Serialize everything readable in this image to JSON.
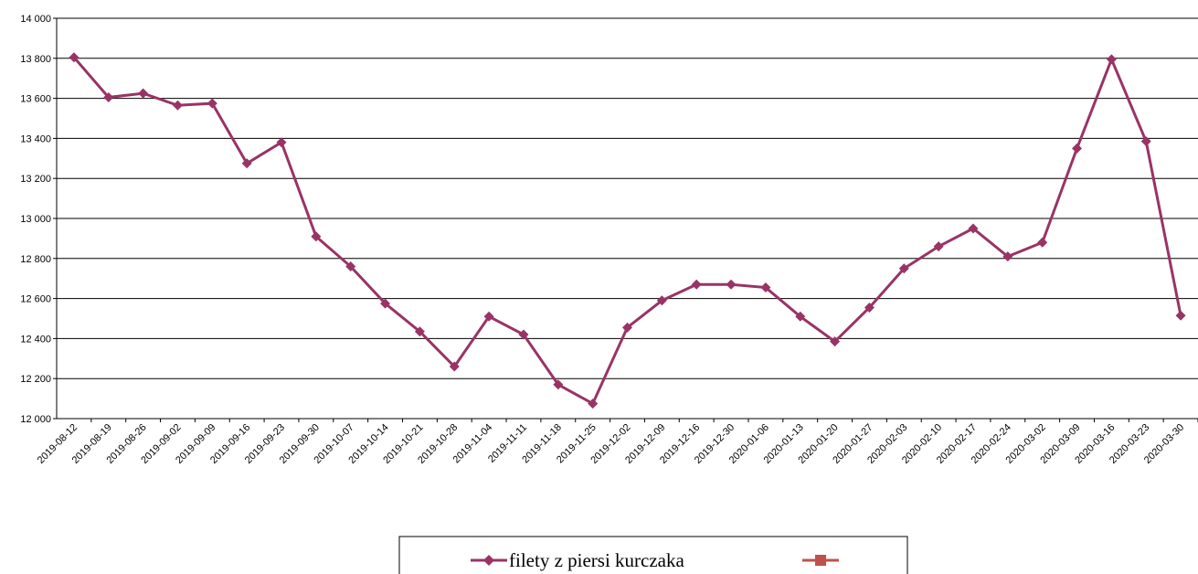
{
  "chart_data": {
    "type": "line",
    "categories": [
      "2019-08-12",
      "2019-08-19",
      "2019-08-26",
      "2019-09-02",
      "2019-09-09",
      "2019-09-16",
      "2019-09-23",
      "2019-09-30",
      "2019-10-07",
      "2019-10-14",
      "2019-10-21",
      "2019-10-28",
      "2019-11-04",
      "2019-11-11",
      "2019-11-18",
      "2019-11-25",
      "2019-12-02",
      "2019-12-09",
      "2019-12-16",
      "2019-12-30",
      "2020-01-06",
      "2020-01-13",
      "2020-01-20",
      "2020-01-27",
      "2020-02-03",
      "2020-02-10",
      "2020-02-17",
      "2020-02-24",
      "2020-03-02",
      "2020-03-09",
      "2020-03-16",
      "2020-03-23",
      "2020-03-30"
    ],
    "series": [
      {
        "name": "filety z piersi kurczaka",
        "color": "#993366",
        "values": [
          13805,
          13605,
          13625,
          13565,
          13575,
          13275,
          13380,
          12910,
          12760,
          12575,
          12435,
          12260,
          12510,
          12420,
          12170,
          12075,
          12455,
          12590,
          12670,
          12670,
          12655,
          12510,
          12385,
          12555,
          12750,
          12860,
          12950,
          12810,
          12880,
          13350,
          13795,
          13385,
          12515
        ]
      },
      {
        "name": null,
        "color": "#c0504d",
        "values": [
          null,
          null,
          null,
          null,
          null,
          null,
          null,
          null,
          null,
          null,
          null,
          null,
          null,
          null,
          null,
          null,
          null,
          null,
          null,
          null,
          null,
          null,
          null,
          null,
          null,
          null,
          null,
          null,
          null,
          null,
          null,
          null,
          null
        ]
      }
    ],
    "ylim": [
      12000,
      14000
    ],
    "yticks": [
      {
        "value": 12000,
        "label": "12 000"
      },
      {
        "value": 12200,
        "label": "12 200"
      },
      {
        "value": 12400,
        "label": "12 400"
      },
      {
        "value": 12600,
        "label": "12 600"
      },
      {
        "value": 12800,
        "label": "12 800"
      },
      {
        "value": 13000,
        "label": "13 000"
      },
      {
        "value": 13200,
        "label": "13 200"
      },
      {
        "value": 13400,
        "label": "13 400"
      },
      {
        "value": 13600,
        "label": "13 600"
      },
      {
        "value": 13800,
        "label": "13 800"
      },
      {
        "value": 14000,
        "label": "14 000"
      }
    ],
    "grid": true
  }
}
